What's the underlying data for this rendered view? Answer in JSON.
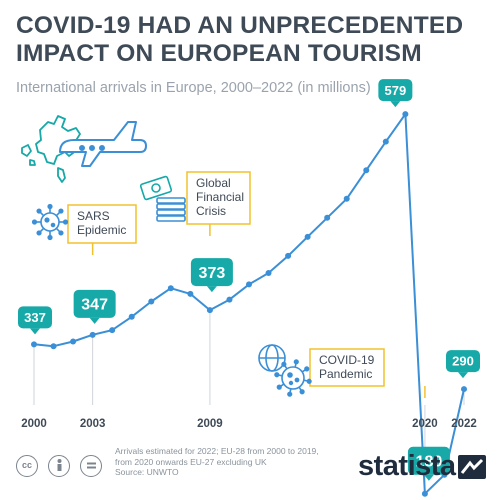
{
  "title": "COVID-19 HAD AN UNPRECEDENTED IMPACT ON EUROPEAN TOURISM",
  "subtitle": "International arrivals in Europe, 2000–2022 (in millions)",
  "chart_data": {
    "type": "line",
    "title": "COVID-19 HAD AN UNPRECEDENTED IMPACT ON EUROPEAN TOURISM",
    "subtitle": "International arrivals in Europe, 2000–2022 (in millions)",
    "x": [
      2000,
      2001,
      2002,
      2003,
      2004,
      2005,
      2006,
      2007,
      2008,
      2009,
      2010,
      2011,
      2012,
      2013,
      2014,
      2015,
      2016,
      2017,
      2018,
      2019,
      2020,
      2021,
      2022
    ],
    "series": [
      {
        "values": [
          337,
          335,
          340,
          347,
          352,
          366,
          382,
          396,
          390,
          373,
          384,
          400,
          412,
          430,
          450,
          470,
          490,
          520,
          550,
          579,
          180,
          200,
          290
        ]
      }
    ],
    "x_tick_labels": [
      "2000",
      "2003",
      "2009",
      "2020",
      "2022"
    ],
    "labeled_points": [
      {
        "x": 2000,
        "label": "337"
      },
      {
        "x": 2003,
        "label": "347"
      },
      {
        "x": 2009,
        "label": "373"
      },
      {
        "x": 2019,
        "label": "579"
      },
      {
        "x": 2020,
        "label": "180"
      },
      {
        "x": 2022,
        "label": "290"
      }
    ],
    "annotations": [
      {
        "x": 2003,
        "lines": [
          "SARS",
          "Epidemic"
        ],
        "icon": "virus-icon"
      },
      {
        "x": 2009,
        "lines": [
          "Global",
          "Financial",
          "Crisis"
        ],
        "icon": "money-stack-icon"
      },
      {
        "x": 2020,
        "lines": [
          "COVID-19",
          "Pandemic"
        ],
        "icon": "globe-virus-icon"
      }
    ],
    "colors": {
      "line": "#3b8fd6",
      "label_bg": "#17a8a8",
      "annotation_border": "#f2c12e",
      "icon": "#3b8fd6"
    }
  },
  "footnote": [
    "Arrivals estimated for 2022; EU-28 from 2000 to 2019,",
    "from 2020 onwards EU-27 excluding UK",
    "Source: UNWTO"
  ],
  "license_icons": [
    "cc-icon",
    "by-icon",
    "equal-icon"
  ],
  "brand": "statista"
}
